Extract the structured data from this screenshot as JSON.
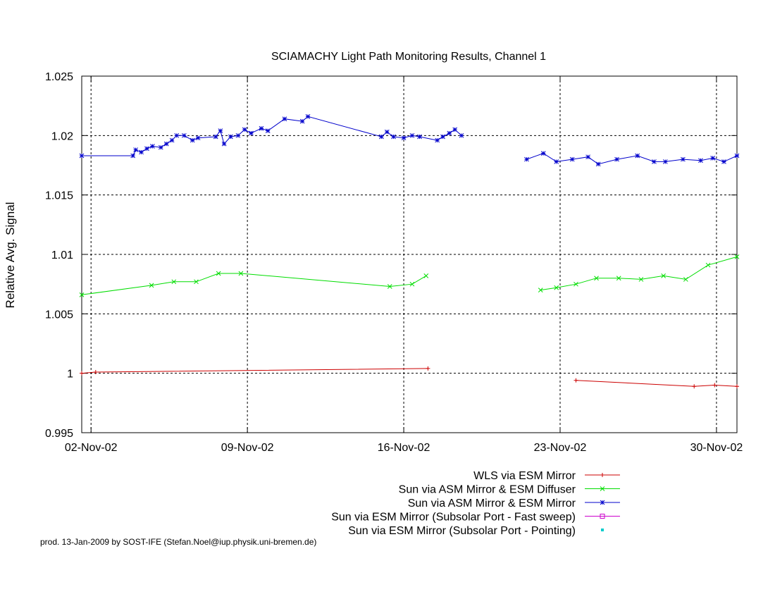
{
  "chart_data": {
    "type": "line",
    "title": "SCIAMACHY Light Path Monitoring Results, Channel 1",
    "xlabel": "",
    "ylabel": "Relative Avg. Signal",
    "xlim": [
      "2002-11-01T14:00",
      "2002-11-30T22:00"
    ],
    "ylim": [
      0.995,
      1.025
    ],
    "x_ticks": [
      {
        "label": "02-Nov-02",
        "date": "2002-11-02"
      },
      {
        "label": "09-Nov-02",
        "date": "2002-11-09"
      },
      {
        "label": "16-Nov-02",
        "date": "2002-11-16"
      },
      {
        "label": "23-Nov-02",
        "date": "2002-11-23"
      },
      {
        "label": "30-Nov-02",
        "date": "2002-11-30"
      }
    ],
    "y_ticks": [
      "0.995",
      "1",
      "1.005",
      "1.01",
      "1.015",
      "1.02",
      "1.025"
    ],
    "y_tick_values": [
      0.995,
      1.0,
      1.005,
      1.01,
      1.015,
      1.02,
      1.025
    ],
    "grid": true,
    "legend_position": "bottom",
    "series": [
      {
        "name": "WLS via ESM Mirror",
        "color": "#cc0000",
        "marker": "plus",
        "segments": [
          [
            [
              "2002-11-01T14:00",
              1.0
            ],
            [
              "2002-11-02T05:00",
              1.0001
            ],
            [
              "2002-11-17T02:00",
              1.0004
            ]
          ],
          [
            [
              "2002-11-23T17:00",
              0.9994
            ],
            [
              "2002-11-29T00:00",
              0.9989
            ],
            [
              "2002-11-29T22:00",
              0.999
            ],
            [
              "2002-11-30T22:00",
              0.9989
            ]
          ]
        ]
      },
      {
        "name": "Sun via ASM Mirror & ESM Diffuser",
        "color": "#00dd00",
        "marker": "cross",
        "segments": [
          [
            [
              "2002-11-01T14:00",
              1.0066
            ],
            [
              "2002-11-04T17:00",
              1.0074
            ],
            [
              "2002-11-05T17:00",
              1.0077
            ],
            [
              "2002-11-06T17:00",
              1.0077
            ],
            [
              "2002-11-07T17:00",
              1.0084
            ],
            [
              "2002-11-08T17:00",
              1.0084
            ],
            [
              "2002-11-15T09:00",
              1.0073
            ],
            [
              "2002-11-16T09:00",
              1.0075
            ],
            [
              "2002-11-17T00:00",
              1.0082
            ]
          ],
          [
            [
              "2002-11-22T03:00",
              1.007
            ],
            [
              "2002-11-22T20:00",
              1.0072
            ],
            [
              "2002-11-23T17:00",
              1.0075
            ],
            [
              "2002-11-24T15:00",
              1.008
            ],
            [
              "2002-11-25T15:00",
              1.008
            ],
            [
              "2002-11-26T15:00",
              1.0079
            ],
            [
              "2002-11-27T15:00",
              1.0082
            ],
            [
              "2002-11-28T15:00",
              1.0079
            ],
            [
              "2002-11-29T15:00",
              1.0091
            ],
            [
              "2002-11-30T22:00",
              1.0098
            ]
          ]
        ]
      },
      {
        "name": "Sun via ASM Mirror & ESM Mirror",
        "color": "#0000cc",
        "marker": "star",
        "segments": [
          [
            [
              "2002-11-01T14:00",
              1.0183
            ],
            [
              "2002-11-03T21:00",
              1.0183
            ],
            [
              "2002-11-04T00:00",
              1.0188
            ],
            [
              "2002-11-04T06:00",
              1.0186
            ],
            [
              "2002-11-04T12:00",
              1.0189
            ],
            [
              "2002-11-04T18:00",
              1.0191
            ],
            [
              "2002-11-05T03:00",
              1.019
            ],
            [
              "2002-11-05T09:00",
              1.0193
            ],
            [
              "2002-11-05T15:00",
              1.0196
            ],
            [
              "2002-11-05T20:00",
              1.02
            ],
            [
              "2002-11-06T04:00",
              1.02
            ],
            [
              "2002-11-06T13:00",
              1.0196
            ],
            [
              "2002-11-06T19:00",
              1.0198
            ],
            [
              "2002-11-07T14:00",
              1.0199
            ],
            [
              "2002-11-07T19:00",
              1.0204
            ],
            [
              "2002-11-07T23:00",
              1.0193
            ],
            [
              "2002-11-08T06:00",
              1.0199
            ],
            [
              "2002-11-08T14:00",
              1.02
            ],
            [
              "2002-11-08T21:00",
              1.0205
            ],
            [
              "2002-11-09T04:00",
              1.0202
            ],
            [
              "2002-11-09T15:00",
              1.0206
            ],
            [
              "2002-11-09T22:00",
              1.0204
            ],
            [
              "2002-11-10T16:00",
              1.0214
            ],
            [
              "2002-11-11T11:00",
              1.0212
            ],
            [
              "2002-11-11T17:00",
              1.0216
            ],
            [
              "2002-11-15T00:00",
              1.0199
            ],
            [
              "2002-11-15T06:00",
              1.0203
            ],
            [
              "2002-11-15T13:00",
              1.0199
            ],
            [
              "2002-11-16T00:00",
              1.0198
            ],
            [
              "2002-11-16T09:00",
              1.02
            ],
            [
              "2002-11-16T17:00",
              1.0199
            ],
            [
              "2002-11-17T12:00",
              1.0196
            ],
            [
              "2002-11-17T18:00",
              1.0199
            ],
            [
              "2002-11-18T01:00",
              1.0202
            ],
            [
              "2002-11-18T07:00",
              1.0205
            ],
            [
              "2002-11-18T14:00",
              1.02
            ]
          ],
          [
            [
              "2002-11-21T12:00",
              1.018
            ],
            [
              "2002-11-22T06:00",
              1.0185
            ],
            [
              "2002-11-22T20:00",
              1.0178
            ],
            [
              "2002-11-23T13:00",
              1.018
            ],
            [
              "2002-11-24T06:00",
              1.0182
            ],
            [
              "2002-11-24T17:00",
              1.0176
            ],
            [
              "2002-11-25T13:00",
              1.018
            ],
            [
              "2002-11-26T11:00",
              1.0183
            ],
            [
              "2002-11-27T05:00",
              1.0178
            ],
            [
              "2002-11-27T17:00",
              1.0178
            ],
            [
              "2002-11-28T12:00",
              1.018
            ],
            [
              "2002-11-29T07:00",
              1.0179
            ],
            [
              "2002-11-29T20:00",
              1.0181
            ],
            [
              "2002-11-30T08:00",
              1.0178
            ],
            [
              "2002-11-30T22:00",
              1.0183
            ]
          ]
        ]
      },
      {
        "name": "Sun via ESM Mirror (Subsolar Port - Fast sweep)",
        "color": "#cc00cc",
        "marker": "square",
        "segments": []
      },
      {
        "name": "Sun via ESM Mirror (Subsolar Port - Pointing)",
        "color": "#00cccc",
        "marker": "dot",
        "segments": []
      }
    ]
  },
  "footer": {
    "text": "prod. 13-Jan-2009 by SOST-IFE (Stefan.Noel@iup.physik.uni-bremen.de)"
  }
}
